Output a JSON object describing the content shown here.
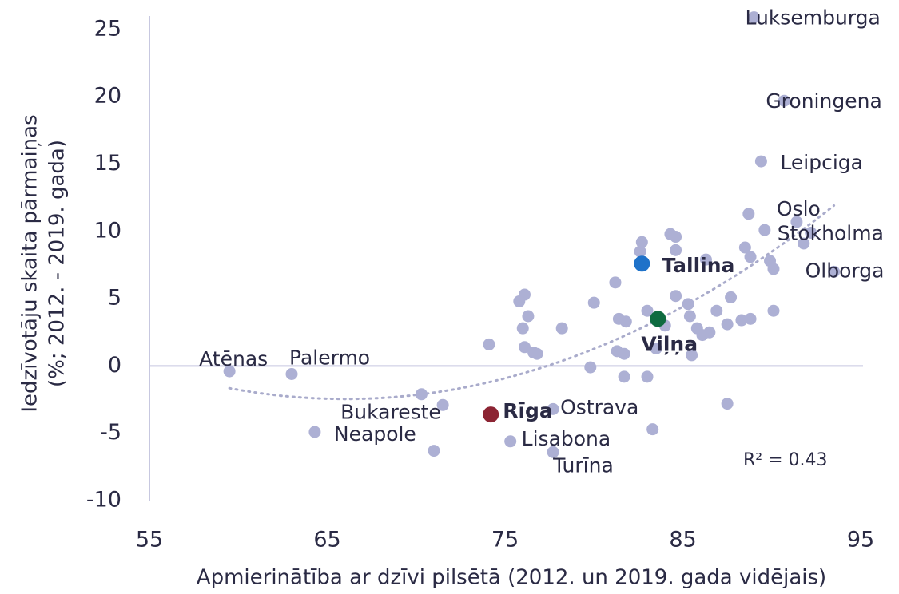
{
  "chart_data": {
    "type": "scatter",
    "xlabel": "Apmierinātība ar dzīvi pilsētā (2012. un 2019. gada vidējais)",
    "ylabel": [
      "Iedzīvotāju skaita pārmaiņas",
      "(%; 2012. - 2019. gada)"
    ],
    "xlim": [
      55,
      95
    ],
    "ylim": [
      -10,
      26
    ],
    "xticks": [
      55,
      65,
      75,
      85,
      95
    ],
    "yticks": [
      -10,
      -5,
      0,
      5,
      10,
      15,
      20,
      25
    ],
    "annotation": "R² = 0.43",
    "trendline": {
      "color": "#a9abcb",
      "coefficients": [
        0.019,
        -2.508,
        80.31
      ],
      "xrange": [
        59.5,
        93.5
      ]
    },
    "series": [
      {
        "color": "#adb0d4",
        "bold": false,
        "x": [
          59.5,
          63.0,
          64.3,
          71.5,
          75.3,
          77.7,
          77.7,
          89.0,
          90.7,
          89.4,
          91.4,
          92.2,
          93.5,
          91.8,
          88.7,
          89.6,
          88.5,
          88.8,
          89.9,
          90.1,
          82.7,
          84.3,
          84.6,
          84.6,
          82.6,
          86.3,
          81.2,
          76.1,
          75.8,
          80.0,
          84.6,
          87.7,
          85.3,
          86.9,
          90.1,
          83.0,
          76.3,
          85.4,
          88.8,
          88.3,
          81.4,
          81.8,
          84.0,
          87.5,
          76.0,
          78.2,
          85.8,
          86.5,
          86.1,
          74.1,
          76.1,
          76.6,
          76.8,
          81.3,
          81.7,
          83.5,
          85.5,
          79.8,
          81.7,
          83.0,
          70.3,
          87.5,
          83.3,
          71.0
        ],
        "values": [
          -0.4,
          -0.6,
          -4.9,
          -2.9,
          -5.6,
          -6.4,
          -3.2,
          25.9,
          19.7,
          15.2,
          10.7,
          9.9,
          7.0,
          9.1,
          11.3,
          10.1,
          8.8,
          8.1,
          7.8,
          7.2,
          9.2,
          9.8,
          9.6,
          8.6,
          8.5,
          7.9,
          6.2,
          5.3,
          4.8,
          4.7,
          5.2,
          5.1,
          4.6,
          4.1,
          4.1,
          4.1,
          3.7,
          3.7,
          3.5,
          3.4,
          3.5,
          3.3,
          3.0,
          3.1,
          2.8,
          2.8,
          2.8,
          2.5,
          2.3,
          1.6,
          1.4,
          1.0,
          0.9,
          1.1,
          0.9,
          1.3,
          0.8,
          -0.1,
          -0.8,
          -0.8,
          -2.1,
          -2.8,
          -4.7,
          -6.3
        ],
        "labels": [
          "Atēnas",
          "Palermo",
          "Neapole",
          "Bukareste",
          "Lisabona",
          "Turīna",
          "Ostrava",
          "Luksemburga",
          "Groningena",
          "Leipciga",
          "Oslo",
          "Stokholma",
          "Olborga",
          null,
          null,
          null,
          null,
          null,
          null,
          null,
          null,
          null,
          null,
          null,
          null,
          null,
          null,
          null,
          null,
          null,
          null,
          null,
          null,
          null,
          null,
          null,
          null,
          null,
          null,
          null,
          null,
          null,
          null,
          null,
          null,
          null,
          null,
          null,
          null,
          null,
          null,
          null,
          null,
          null,
          null,
          null,
          null,
          null,
          null,
          null,
          null,
          null,
          null,
          null
        ]
      },
      {
        "color": "#1f72c9",
        "bold": true,
        "x": [
          82.7
        ],
        "values": [
          7.6
        ],
        "labels": [
          "Tallina"
        ]
      },
      {
        "color": "#0e6b40",
        "bold": true,
        "x": [
          83.6
        ],
        "values": [
          3.5
        ],
        "labels": [
          "Viļņa"
        ]
      },
      {
        "color": "#8c2433",
        "bold": true,
        "x": [
          74.2
        ],
        "values": [
          -3.6
        ],
        "labels": [
          "Rīga"
        ]
      }
    ]
  }
}
